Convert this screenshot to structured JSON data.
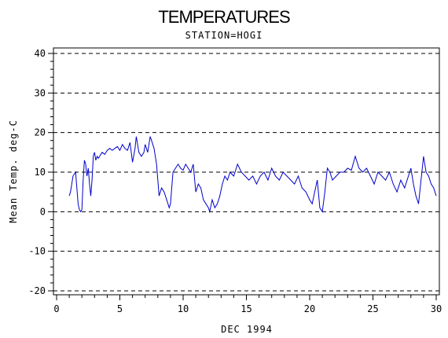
{
  "chart_data": {
    "type": "line",
    "title": "TEMPERATURES",
    "subtitle": "STATION=HOGI",
    "xlabel": "DEC 1994",
    "ylabel": "Mean Temp. deg-C",
    "xlim": [
      0,
      30
    ],
    "ylim": [
      -20,
      40
    ],
    "xticks": [
      "0",
      "5",
      "10",
      "15",
      "20",
      "25",
      "30"
    ],
    "yticks": [
      "40",
      "30",
      "20",
      "10",
      "0",
      "-10",
      "-20"
    ],
    "grid": "horizontal-dashed",
    "line_color": "#0000cc",
    "series": [
      {
        "x": [
          1.0,
          1.1,
          1.3,
          1.5,
          1.6,
          1.7,
          1.8,
          1.9,
          2.0,
          2.1,
          2.2,
          2.3,
          2.4,
          2.5,
          2.6,
          2.7,
          2.8,
          2.9,
          3.0,
          3.1,
          3.2,
          3.3,
          3.4,
          3.5,
          3.6,
          3.8,
          4.0,
          4.2,
          4.4,
          4.6,
          4.8,
          5.0,
          5.2,
          5.4,
          5.6,
          5.8,
          6.0,
          6.2,
          6.3,
          6.5,
          6.7,
          6.9,
          7.0,
          7.2,
          7.4,
          7.5,
          7.6,
          7.7,
          7.8,
          7.9,
          8.0,
          8.1,
          8.3,
          8.5,
          8.7,
          8.9,
          9.0,
          9.2,
          9.4,
          9.6,
          9.8,
          10.0,
          10.2,
          10.4,
          10.6,
          10.8,
          11.0,
          11.2,
          11.4,
          11.6,
          11.8,
          12.0,
          12.1,
          12.3,
          12.5,
          12.7,
          12.9,
          13.1,
          13.3,
          13.5,
          13.7,
          14.0,
          14.3,
          14.6,
          14.9,
          15.2,
          15.5,
          15.8,
          16.1,
          16.4,
          16.7,
          17.0,
          17.3,
          17.6,
          17.9,
          18.2,
          18.5,
          18.8,
          19.1,
          19.4,
          19.7,
          20.0,
          20.2,
          20.4,
          20.6,
          20.8,
          21.0,
          21.2,
          21.4,
          21.6,
          21.8,
          22.1,
          22.4,
          22.7,
          23.0,
          23.3,
          23.6,
          23.9,
          24.2,
          24.5,
          24.8,
          25.1,
          25.4,
          25.7,
          26.0,
          26.3,
          26.6,
          26.9,
          27.2,
          27.5,
          27.8,
          28.0,
          28.2,
          28.4,
          28.6,
          28.8,
          29.0,
          29.2,
          29.4,
          29.6,
          29.8,
          30.0
        ],
        "y": [
          4,
          5,
          9,
          10,
          6,
          2,
          0.5,
          0,
          0.5,
          8,
          13,
          12,
          9,
          11,
          7,
          4,
          8,
          14,
          15,
          13,
          14,
          13.5,
          14,
          14.5,
          15,
          14.5,
          15.5,
          16,
          15.5,
          16,
          16.5,
          15.5,
          17,
          16,
          15.5,
          17.5,
          12.5,
          16,
          19,
          15,
          14,
          15,
          17,
          15,
          19,
          18,
          17,
          16,
          14,
          12,
          8,
          4,
          6,
          5,
          3,
          1,
          2,
          10,
          11,
          12,
          11,
          10.5,
          12,
          11,
          10,
          12,
          5,
          7,
          6,
          3,
          2,
          1,
          0,
          3,
          1,
          2,
          4,
          7,
          9,
          8,
          10,
          9,
          12,
          10,
          9,
          8,
          9,
          7,
          9,
          10,
          8,
          11,
          9,
          8,
          10,
          9,
          8,
          7,
          9,
          6,
          5,
          3,
          2,
          5,
          8,
          1,
          0,
          5,
          11,
          10,
          8,
          9,
          10,
          10,
          11,
          10.5,
          14,
          11,
          10,
          11,
          9,
          7,
          10,
          9,
          8,
          10,
          7,
          5,
          8,
          6,
          9,
          11,
          7,
          4,
          2,
          8,
          14,
          10,
          9,
          7,
          6,
          4
        ]
      }
    ]
  }
}
